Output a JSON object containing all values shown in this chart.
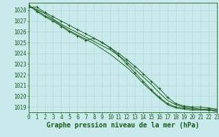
{
  "title": "Graphe pression niveau de la mer (hPa)",
  "bg_color": "#c8eaea",
  "grid_color": "#b0d4d4",
  "line_color": "#1a5c1a",
  "xmin": 0,
  "xmax": 23,
  "ymin": 1018.5,
  "ymax": 1028.7,
  "yticks": [
    1019,
    1020,
    1021,
    1022,
    1023,
    1024,
    1025,
    1026,
    1027,
    1028
  ],
  "xticks": [
    0,
    1,
    2,
    3,
    4,
    5,
    6,
    7,
    8,
    9,
    10,
    11,
    12,
    13,
    14,
    15,
    16,
    17,
    18,
    19,
    20,
    21,
    22,
    23
  ],
  "curves": [
    [
      1028.3,
      1028.3,
      1027.8,
      1027.4,
      1027.0,
      1026.6,
      1026.2,
      1025.8,
      1025.4,
      1025.0,
      1024.5,
      1024.0,
      1023.4,
      1022.8,
      1022.1,
      1021.4,
      1020.7,
      1019.9,
      1019.3,
      1019.1,
      1019.0,
      1019.0,
      1018.9,
      1018.8
    ],
    [
      1028.3,
      1028.1,
      1027.7,
      1027.2,
      1026.7,
      1026.3,
      1025.9,
      1025.5,
      1025.1,
      1024.7,
      1024.3,
      1023.8,
      1023.2,
      1022.5,
      1021.8,
      1021.1,
      1020.3,
      1019.6,
      1019.2,
      1019.0,
      1018.9,
      1018.8,
      1018.8,
      1018.7
    ],
    [
      1028.4,
      1028.0,
      1027.5,
      1027.1,
      1026.6,
      1026.1,
      1025.7,
      1025.3,
      1024.9,
      1024.4,
      1023.9,
      1023.3,
      1022.7,
      1022.0,
      1021.2,
      1020.5,
      1019.8,
      1019.2,
      1018.9,
      1018.8,
      1018.7,
      1018.7,
      1018.7,
      1018.6
    ],
    [
      1028.5,
      1027.9,
      1027.4,
      1027.0,
      1026.5,
      1026.0,
      1025.6,
      1025.2,
      1025.4,
      1025.0,
      1024.5,
      1023.8,
      1023.0,
      1022.2,
      1021.4,
      1020.6,
      1019.9,
      1019.3,
      1019.0,
      1018.9,
      1018.8,
      1018.8,
      1018.7,
      1018.6
    ]
  ],
  "marker_indices": [
    0,
    3
  ],
  "title_fontsize": 7,
  "tick_fontsize": 5.5,
  "title_color": "#1a5c1a"
}
